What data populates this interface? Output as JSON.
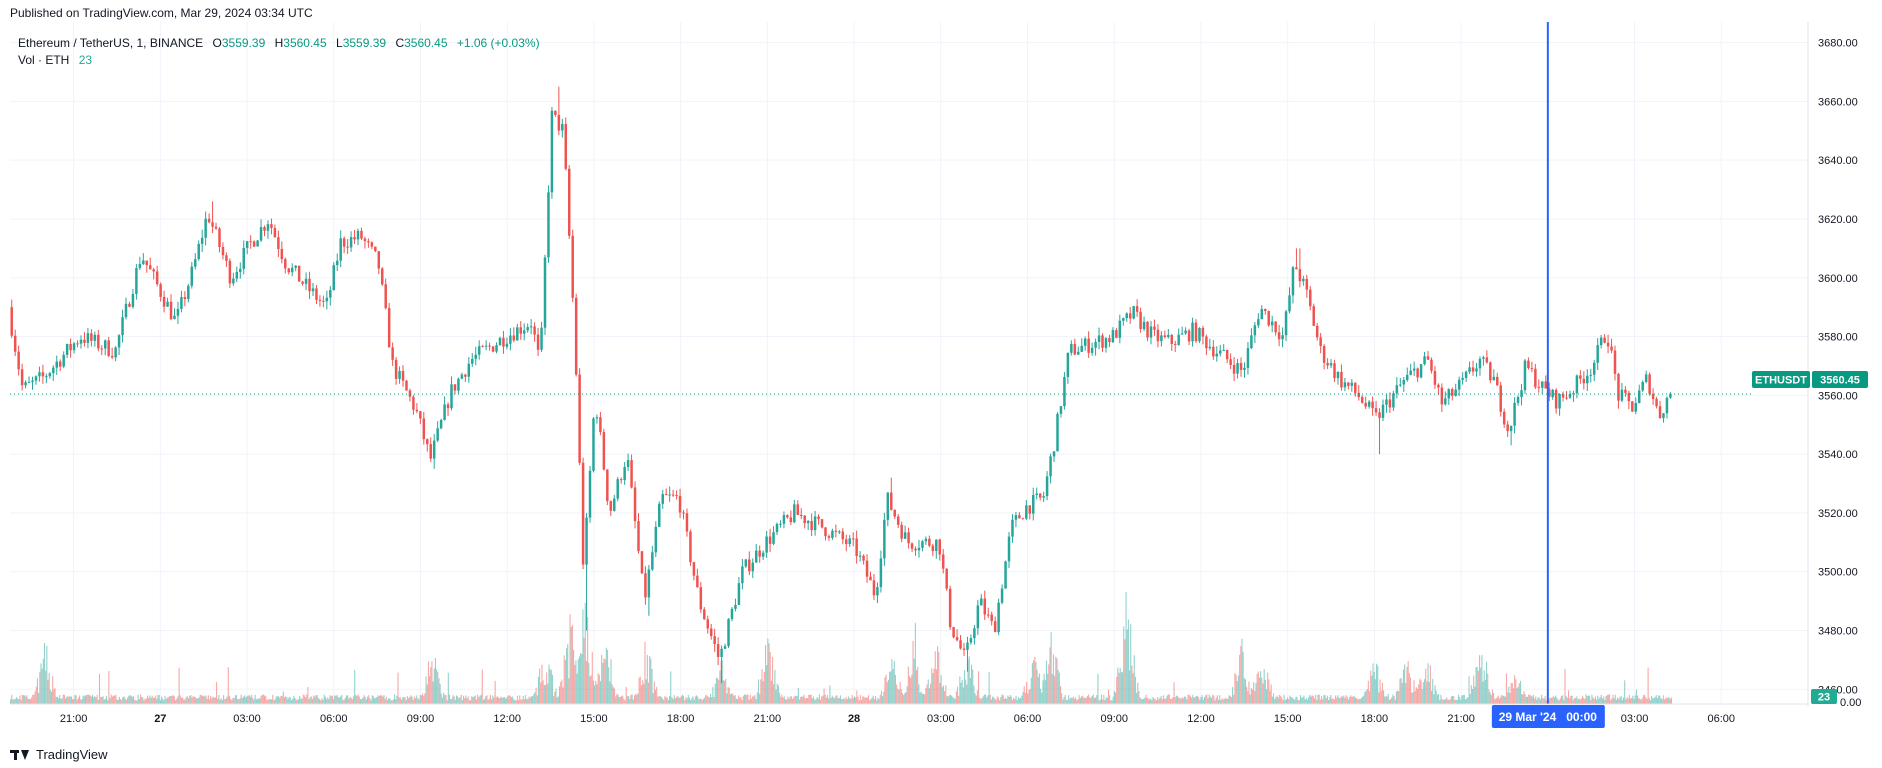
{
  "header": {
    "published": "Published on TradingView.com, Mar 29, 2024 03:34 UTC"
  },
  "legend": {
    "symbol": "Ethereum / TetherUS, 1, BINANCE",
    "o_label": "O",
    "o_value": "3559.39",
    "h_label": "H",
    "h_value": "3560.45",
    "l_label": "L",
    "l_value": "3559.39",
    "c_label": "C",
    "c_value": "3560.45",
    "change": "+1.06 (+0.03%)",
    "vol_label": "Vol · ETH",
    "vol_value": "23"
  },
  "price_tag": {
    "symbol": "ETHUSDT",
    "value": "3560.45"
  },
  "volume_tag": "23",
  "crosshair_label": "29 Mar '24   00:00",
  "footer": {
    "brand": "TradingView"
  },
  "colors": {
    "up": "#26a69a",
    "down": "#ef5350",
    "accent": "#2962ff",
    "price_tag": "#089981"
  },
  "chart_data": {
    "type": "candlestick",
    "y_axis": {
      "range": [
        3455,
        3687
      ],
      "ticks": [
        3680,
        3660,
        3640,
        3620,
        3600,
        3580,
        3560,
        3540,
        3520,
        3500,
        3480,
        3460
      ],
      "tick_labels": [
        "3680.00",
        "3660.00",
        "3640.00",
        "3620.00",
        "3600.00",
        "3580.00",
        "3560.00",
        "3540.00",
        "3520.00",
        "3500.00",
        "3480.00",
        "3460.00"
      ],
      "volume_bottom_label": "0.00"
    },
    "x_axis": {
      "ticks": [
        {
          "t": 2.2,
          "label": "21:00",
          "bold": false
        },
        {
          "t": 5.2,
          "label": "27",
          "bold": true
        },
        {
          "t": 8.2,
          "label": "03:00",
          "bold": false
        },
        {
          "t": 11.2,
          "label": "06:00",
          "bold": false
        },
        {
          "t": 14.2,
          "label": "09:00",
          "bold": false
        },
        {
          "t": 17.2,
          "label": "12:00",
          "bold": false
        },
        {
          "t": 20.2,
          "label": "15:00",
          "bold": false
        },
        {
          "t": 23.2,
          "label": "18:00",
          "bold": false
        },
        {
          "t": 26.2,
          "label": "21:00",
          "bold": false
        },
        {
          "t": 29.2,
          "label": "28",
          "bold": true
        },
        {
          "t": 32.2,
          "label": "03:00",
          "bold": false
        },
        {
          "t": 35.2,
          "label": "06:00",
          "bold": false
        },
        {
          "t": 38.2,
          "label": "09:00",
          "bold": false
        },
        {
          "t": 41.2,
          "label": "12:00",
          "bold": false
        },
        {
          "t": 44.2,
          "label": "15:00",
          "bold": false
        },
        {
          "t": 47.2,
          "label": "18:00",
          "bold": false
        },
        {
          "t": 50.2,
          "label": "21:00",
          "bold": false
        },
        {
          "t": 56.2,
          "label": "03:00",
          "bold": false
        },
        {
          "t": 59.2,
          "label": "06:00",
          "bold": false
        }
      ],
      "crosshair_t": 53.2,
      "range": [
        0,
        62.2
      ]
    },
    "current_price": 3560.45,
    "anchors": [
      [
        0,
        3590
      ],
      [
        0.5,
        3562
      ],
      [
        1.2,
        3566
      ],
      [
        2.5,
        3580
      ],
      [
        3.7,
        3575
      ],
      [
        4.6,
        3608
      ],
      [
        5.8,
        3585
      ],
      [
        6.4,
        3603
      ],
      [
        6.9,
        3622
      ],
      [
        7.7,
        3600
      ],
      [
        8.4,
        3612
      ],
      [
        9.0,
        3620
      ],
      [
        9.6,
        3605
      ],
      [
        10.4,
        3596
      ],
      [
        11.0,
        3590
      ],
      [
        11.5,
        3612
      ],
      [
        12.2,
        3614
      ],
      [
        12.8,
        3605
      ],
      [
        13.3,
        3570
      ],
      [
        14.1,
        3555
      ],
      [
        14.6,
        3538
      ],
      [
        15.3,
        3561
      ],
      [
        16.0,
        3572
      ],
      [
        17.2,
        3580
      ],
      [
        18.1,
        3585
      ],
      [
        18.4,
        3570
      ],
      [
        18.8,
        3655
      ],
      [
        19.2,
        3650
      ],
      [
        19.6,
        3580
      ],
      [
        19.9,
        3500
      ],
      [
        20.3,
        3560
      ],
      [
        20.8,
        3520
      ],
      [
        21.4,
        3540
      ],
      [
        22.0,
        3490
      ],
      [
        22.6,
        3525
      ],
      [
        23.2,
        3525
      ],
      [
        23.9,
        3490
      ],
      [
        24.6,
        3470
      ],
      [
        25.4,
        3500
      ],
      [
        26.2,
        3510
      ],
      [
        27.2,
        3520
      ],
      [
        28.2,
        3515
      ],
      [
        29.3,
        3508
      ],
      [
        30.0,
        3492
      ],
      [
        30.4,
        3525
      ],
      [
        31.1,
        3510
      ],
      [
        32.2,
        3510
      ],
      [
        32.6,
        3482
      ],
      [
        33.1,
        3470
      ],
      [
        33.6,
        3490
      ],
      [
        34.1,
        3480
      ],
      [
        34.7,
        3515
      ],
      [
        35.2,
        3522
      ],
      [
        35.8,
        3525
      ],
      [
        36.2,
        3545
      ],
      [
        36.7,
        3575
      ],
      [
        37.6,
        3578
      ],
      [
        38.2,
        3580
      ],
      [
        38.9,
        3588
      ],
      [
        39.6,
        3580
      ],
      [
        40.2,
        3578
      ],
      [
        41.0,
        3582
      ],
      [
        41.8,
        3575
      ],
      [
        42.7,
        3568
      ],
      [
        43.3,
        3590
      ],
      [
        44.1,
        3580
      ],
      [
        44.5,
        3605
      ],
      [
        44.9,
        3595
      ],
      [
        45.4,
        3575
      ],
      [
        46.1,
        3565
      ],
      [
        46.7,
        3560
      ],
      [
        47.3,
        3552
      ],
      [
        48.3,
        3565
      ],
      [
        49.1,
        3572
      ],
      [
        49.6,
        3557
      ],
      [
        50.3,
        3564
      ],
      [
        50.9,
        3572
      ],
      [
        51.4,
        3565
      ],
      [
        51.9,
        3548
      ],
      [
        52.5,
        3570
      ],
      [
        53.1,
        3562
      ],
      [
        53.6,
        3558
      ],
      [
        54.1,
        3562
      ],
      [
        54.8,
        3570
      ],
      [
        55.3,
        3582
      ],
      [
        55.7,
        3560
      ],
      [
        56.2,
        3556
      ],
      [
        56.7,
        3566
      ],
      [
        57.1,
        3553
      ],
      [
        57.5,
        3561
      ]
    ],
    "spikes": [
      {
        "t": 14.6,
        "low": 3535
      },
      {
        "t": 19.9,
        "low": 3480
      },
      {
        "t": 22.0,
        "low": 3485
      },
      {
        "t": 24.6,
        "low": 3462
      },
      {
        "t": 33.1,
        "low": 3466
      },
      {
        "t": 47.3,
        "low": 3540
      },
      {
        "t": 51.9,
        "low": 3543
      },
      {
        "t": 18.9,
        "high": 3665
      },
      {
        "t": 44.5,
        "high": 3610
      },
      {
        "t": 6.9,
        "high": 3626
      },
      {
        "t": 30.4,
        "high": 3532
      }
    ],
    "volume_peaks": [
      {
        "t": 1.2,
        "h": 0.55
      },
      {
        "t": 14.6,
        "h": 0.5
      },
      {
        "t": 18.5,
        "h": 0.5
      },
      {
        "t": 19.4,
        "h": 0.85
      },
      {
        "t": 19.9,
        "h": 1.0
      },
      {
        "t": 20.6,
        "h": 0.6
      },
      {
        "t": 22.0,
        "h": 0.55
      },
      {
        "t": 24.6,
        "h": 0.4
      },
      {
        "t": 26.2,
        "h": 0.6
      },
      {
        "t": 30.5,
        "h": 0.45
      },
      {
        "t": 31.2,
        "h": 0.55
      },
      {
        "t": 32.0,
        "h": 0.62
      },
      {
        "t": 33.1,
        "h": 0.5
      },
      {
        "t": 35.4,
        "h": 0.45
      },
      {
        "t": 36.0,
        "h": 0.6
      },
      {
        "t": 38.6,
        "h": 0.98
      },
      {
        "t": 42.6,
        "h": 0.55
      },
      {
        "t": 43.3,
        "h": 0.45
      },
      {
        "t": 47.2,
        "h": 0.4
      },
      {
        "t": 48.3,
        "h": 0.45
      },
      {
        "t": 49.0,
        "h": 0.45
      },
      {
        "t": 50.9,
        "h": 0.6
      },
      {
        "t": 52.1,
        "h": 0.3
      }
    ],
    "volume_label": "Vol · ETH"
  }
}
